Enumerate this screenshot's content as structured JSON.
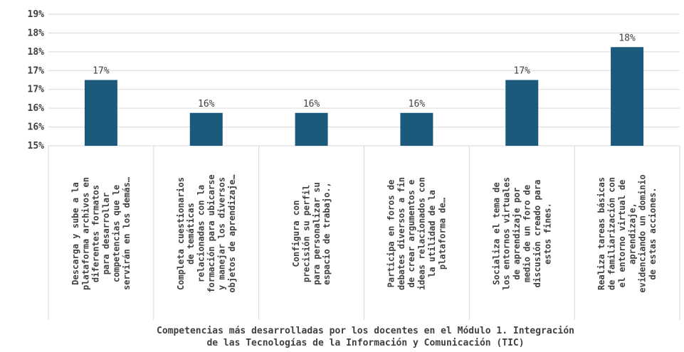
{
  "chart_data": {
    "type": "bar",
    "title": "",
    "xlabel": "Competencias más desarrolladas por los docentes en el Módulo 1. Integración de las Tecnologías de la Información y Comunicación (TIC)",
    "xlabel_lines": [
      "Competencias más desarrolladas por los docentes en el Módulo 1. Integración",
      "de las Tecnologías de la Información y Comunicación (TIC)"
    ],
    "ylabel": "",
    "ylim": [
      0.15,
      0.19
    ],
    "yticks": [
      "15%",
      "16%",
      "16%",
      "17%",
      "17%",
      "18%",
      "18%",
      "19%"
    ],
    "grid": true,
    "legend": "none",
    "bar_color": "#1c5a7d",
    "categories": [
      {
        "label": "Descarga y sube a la plataforma archivos en diferentes formatos para desarrollar competencias que le servirán en los demás…",
        "lines": [
          "Descarga y sube a la",
          "plataforma archivos en",
          "diferentes formatos",
          "para desarrollar",
          "competencias que le",
          "servirán en los demás…"
        ]
      },
      {
        "label": "Completa cuestionarios de temáticas relacionadas con la formación para ubicarse y manejar los diversos objetos de aprendizaje…",
        "lines": [
          "Completa cuestionarios",
          "de temáticas",
          "relacionadas con la",
          "formación para ubicarse",
          "y manejar los diversos",
          "objetos de aprendizaje…"
        ]
      },
      {
        "label": "Configura con precisión su perfil para personalizar su espacio de trabajo.,",
        "lines": [
          "Configura con",
          "precisión su perfil",
          "para personalizar su",
          "espacio de trabajo.,"
        ]
      },
      {
        "label": "Participa en foros de debates diversos a fin de crear argumentos e ideas relacionados con la utilidad de la plataforma de…",
        "lines": [
          "Participa en foros de",
          "debates diversos a fin",
          "de crear argumentos e",
          "ideas relacionados con",
          "la utilidad de la",
          "plataforma de…"
        ]
      },
      {
        "label": "Socializa el tema de los entornos virtuales de aprendizaje por medio de un foro de discusión creado para estos fines.",
        "lines": [
          "Socializa el tema de",
          "los entornos virtuales",
          "de aprendizaje por",
          "medio de un foro de",
          "discusión creado para",
          "estos fines."
        ]
      },
      {
        "label": "Realiza tareas básicas de familiarización con el entorno virtual de aprendizaje, evidenciando un dominio de estas acciones.",
        "lines": [
          "Realiza tareas básicas",
          "de familiarización con",
          "el entorno virtual de",
          "aprendizaje,",
          "evidenciando un dominio",
          "de estas acciones."
        ]
      }
    ],
    "values": [
      0.17,
      0.16,
      0.16,
      0.16,
      0.17,
      0.18
    ],
    "data_labels": [
      "17%",
      "16%",
      "16%",
      "16%",
      "17%",
      "18%"
    ]
  }
}
